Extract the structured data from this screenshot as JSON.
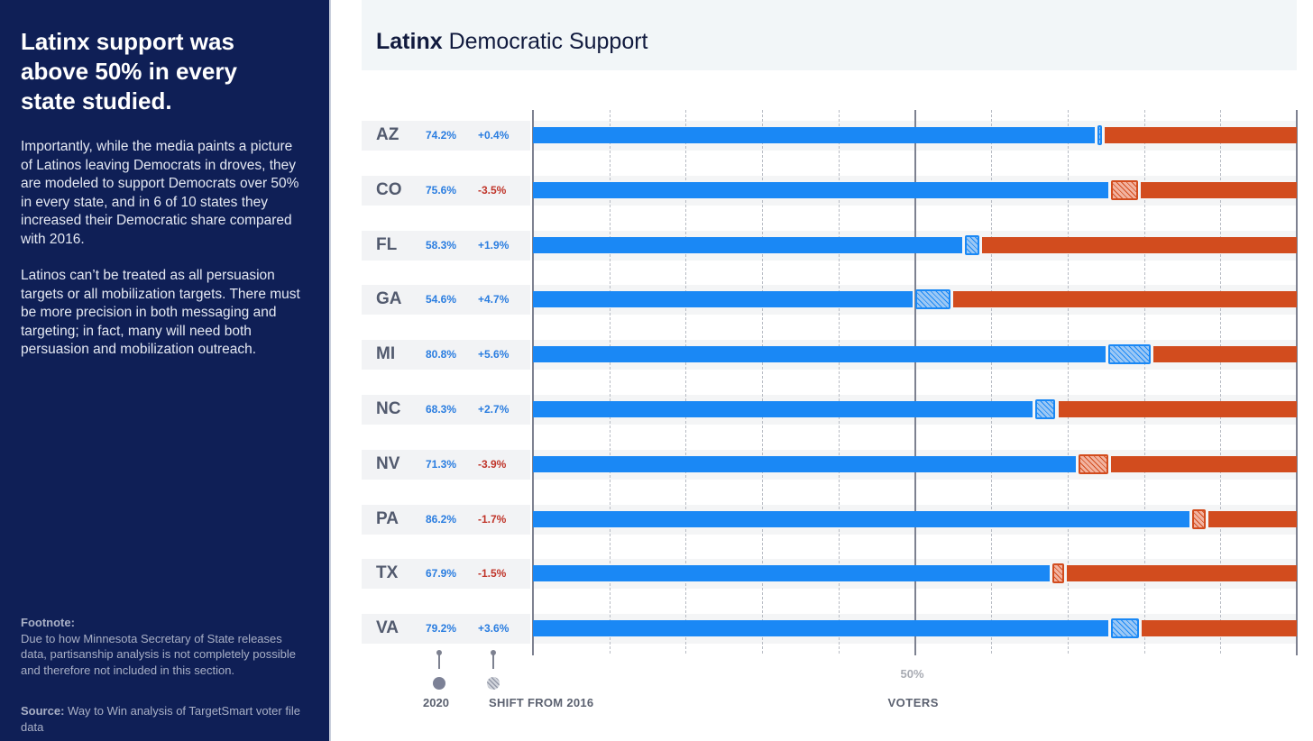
{
  "sidebar": {
    "headline": "Latinx support was above 50% in every state studied.",
    "para1": "Importantly, while the media paints a picture of Latinos leaving Democrats in droves, they are modeled to support Democrats over 50% in every state, and in 6 of 10 states they increased their Democratic share compared with 2016.",
    "para2": "Latinos can’t be treated as all persuasion targets or all mobilization targets. There must be more precision in both messaging and targeting; in fact, many will need both persuasion and mobilization outreach.",
    "footnote_label": "Footnote:",
    "footnote": "Due to how Minnesota Secretary of State releases data, partisanship analysis is not completely possible and therefore not included in this section.",
    "source_label": "Source:",
    "source": "Way to Win analysis of TargetSmart voter file data"
  },
  "chart_data": {
    "type": "bar",
    "title_bold": "Latinx",
    "title_rest": "Democratic Support",
    "categories": [
      "AZ",
      "CO",
      "FL",
      "GA",
      "MI",
      "NC",
      "NV",
      "PA",
      "TX",
      "VA"
    ],
    "values_2020": [
      74.2,
      75.6,
      58.3,
      54.6,
      80.8,
      68.3,
      71.3,
      86.2,
      67.9,
      79.2
    ],
    "value_labels": [
      "74.2%",
      "75.6%",
      "58.3%",
      "54.6%",
      "80.8%",
      "68.3%",
      "71.3%",
      "86.2%",
      "67.9%",
      "79.2%"
    ],
    "shift": [
      0.4,
      -3.5,
      1.9,
      4.7,
      5.6,
      2.7,
      -3.9,
      -1.7,
      -1.5,
      3.6
    ],
    "shift_labels": [
      "+0.4%",
      "-3.5%",
      "+1.9%",
      "+4.7%",
      "+5.6%",
      "+2.7%",
      "-3.9%",
      "-1.7%",
      "-1.5%",
      "+3.6%"
    ],
    "xlim": [
      0,
      100
    ],
    "grid_step": 10,
    "midline_label": "50%",
    "xlabel": "VOTERS",
    "legend": {
      "dot": "2020",
      "hatch": "SHIFT FROM 2016"
    },
    "colors": {
      "dem": "#1a88f5",
      "rep": "#d24c1e",
      "pos_text": "#2a7de0",
      "neg_text": "#c0352a",
      "hatch_pos": "#9cc8f5",
      "hatch_neg": "#f2b3a0"
    }
  }
}
